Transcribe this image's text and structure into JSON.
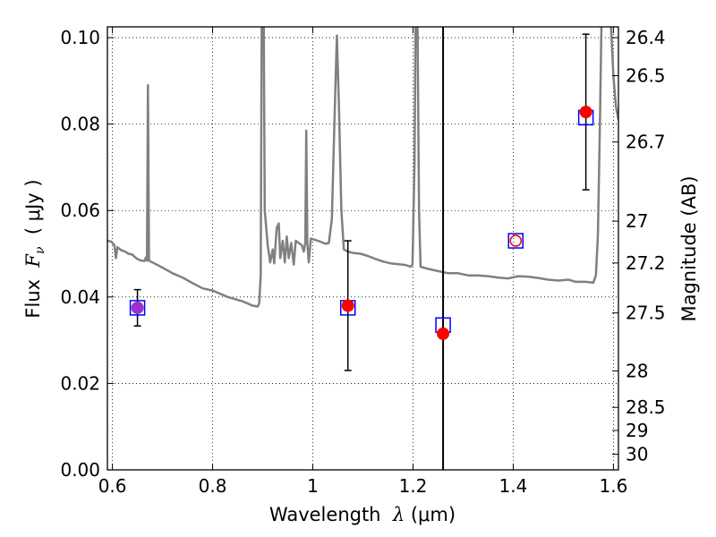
{
  "chart_data": {
    "type": "scatter",
    "title": "",
    "xlabel": {
      "prefix": "Wavelength  ",
      "symbol": "λ",
      "unit": " (μm)"
    },
    "ylabel": {
      "prefix": "Flux  ",
      "symbol": "F",
      "subscript": "ν",
      "unit": "  ( μJy )"
    },
    "y2label": "Magnitude (AB)",
    "xlim": [
      0.59,
      1.61
    ],
    "ylim": [
      0.0,
      0.1025
    ],
    "grid": true,
    "x_ticks": [
      {
        "value": 0.6,
        "label": "0.6"
      },
      {
        "value": 0.8,
        "label": "0.8"
      },
      {
        "value": 1.0,
        "label": "1"
      },
      {
        "value": 1.2,
        "label": "1.2"
      },
      {
        "value": 1.4,
        "label": "1.4"
      },
      {
        "value": 1.6,
        "label": "1.6"
      }
    ],
    "y_ticks": [
      {
        "value": 0.0,
        "label": "0.00"
      },
      {
        "value": 0.02,
        "label": "0.02"
      },
      {
        "value": 0.04,
        "label": "0.04"
      },
      {
        "value": 0.06,
        "label": "0.06"
      },
      {
        "value": 0.08,
        "label": "0.08"
      },
      {
        "value": 0.1,
        "label": "0.10"
      }
    ],
    "y2_ticks": [
      {
        "value": 26.4,
        "label": "26.4"
      },
      {
        "value": 26.5,
        "label": "26.5"
      },
      {
        "value": 26.7,
        "label": "26.7"
      },
      {
        "value": 27.0,
        "label": "27"
      },
      {
        "value": 27.2,
        "label": "27.2"
      },
      {
        "value": 27.5,
        "label": "27.5"
      },
      {
        "value": 28.0,
        "label": "28"
      },
      {
        "value": 28.5,
        "label": "28.5"
      },
      {
        "value": 29.0,
        "label": "29"
      },
      {
        "value": 30.0,
        "label": "30"
      }
    ],
    "vertical_line_x": 1.26,
    "model_spectrum": {
      "color": "#808080",
      "points": [
        [
          0.59,
          0.053
        ],
        [
          0.598,
          0.0528
        ],
        [
          0.604,
          0.052
        ],
        [
          0.607,
          0.049
        ],
        [
          0.61,
          0.0515
        ],
        [
          0.618,
          0.0508
        ],
        [
          0.625,
          0.0505
        ],
        [
          0.632,
          0.05
        ],
        [
          0.64,
          0.0498
        ],
        [
          0.645,
          0.0492
        ],
        [
          0.65,
          0.0488
        ],
        [
          0.655,
          0.0485
        ],
        [
          0.66,
          0.0484
        ],
        [
          0.664,
          0.0483
        ],
        [
          0.667,
          0.0492
        ],
        [
          0.669,
          0.0484
        ],
        [
          0.671,
          0.089
        ],
        [
          0.673,
          0.0484
        ],
        [
          0.68,
          0.048
        ],
        [
          0.7,
          0.0468
        ],
        [
          0.72,
          0.0455
        ],
        [
          0.74,
          0.0445
        ],
        [
          0.76,
          0.0432
        ],
        [
          0.78,
          0.042
        ],
        [
          0.8,
          0.0415
        ],
        [
          0.83,
          0.04
        ],
        [
          0.86,
          0.039
        ],
        [
          0.88,
          0.038
        ],
        [
          0.89,
          0.0378
        ],
        [
          0.893,
          0.0385
        ],
        [
          0.896,
          0.045
        ],
        [
          0.898,
          0.103
        ],
        [
          0.902,
          0.103
        ],
        [
          0.904,
          0.06
        ],
        [
          0.91,
          0.052
        ],
        [
          0.915,
          0.048
        ],
        [
          0.92,
          0.051
        ],
        [
          0.923,
          0.0478
        ],
        [
          0.928,
          0.056
        ],
        [
          0.932,
          0.057
        ],
        [
          0.935,
          0.049
        ],
        [
          0.94,
          0.053
        ],
        [
          0.944,
          0.048
        ],
        [
          0.948,
          0.054
        ],
        [
          0.952,
          0.049
        ],
        [
          0.957,
          0.0525
        ],
        [
          0.962,
          0.0475
        ],
        [
          0.966,
          0.053
        ],
        [
          0.972,
          0.0525
        ],
        [
          0.978,
          0.052
        ],
        [
          0.982,
          0.0505
        ],
        [
          0.985,
          0.0525
        ],
        [
          0.987,
          0.0785
        ],
        [
          0.989,
          0.0525
        ],
        [
          0.992,
          0.048
        ],
        [
          0.996,
          0.0535
        ],
        [
          1.005,
          0.0532
        ],
        [
          1.015,
          0.0528
        ],
        [
          1.025,
          0.0523
        ],
        [
          1.032,
          0.0525
        ],
        [
          1.038,
          0.058
        ],
        [
          1.043,
          0.08
        ],
        [
          1.048,
          0.1005
        ],
        [
          1.052,
          0.085
        ],
        [
          1.057,
          0.06
        ],
        [
          1.062,
          0.051
        ],
        [
          1.07,
          0.0505
        ],
        [
          1.08,
          0.0502
        ],
        [
          1.095,
          0.05
        ],
        [
          1.11,
          0.0495
        ],
        [
          1.125,
          0.0488
        ],
        [
          1.14,
          0.0482
        ],
        [
          1.155,
          0.0478
        ],
        [
          1.17,
          0.0476
        ],
        [
          1.185,
          0.0474
        ],
        [
          1.195,
          0.047
        ],
        [
          1.199,
          0.0475
        ],
        [
          1.203,
          0.072
        ],
        [
          1.205,
          0.103
        ],
        [
          1.209,
          0.103
        ],
        [
          1.212,
          0.06
        ],
        [
          1.215,
          0.047
        ],
        [
          1.23,
          0.0465
        ],
        [
          1.25,
          0.046
        ],
        [
          1.27,
          0.0455
        ],
        [
          1.29,
          0.0455
        ],
        [
          1.31,
          0.045
        ],
        [
          1.33,
          0.045
        ],
        [
          1.35,
          0.0448
        ],
        [
          1.37,
          0.0445
        ],
        [
          1.39,
          0.0443
        ],
        [
          1.41,
          0.0448
        ],
        [
          1.43,
          0.0447
        ],
        [
          1.45,
          0.0444
        ],
        [
          1.47,
          0.044
        ],
        [
          1.49,
          0.0438
        ],
        [
          1.51,
          0.044
        ],
        [
          1.525,
          0.0435
        ],
        [
          1.545,
          0.0435
        ],
        [
          1.56,
          0.0433
        ],
        [
          1.565,
          0.045
        ],
        [
          1.569,
          0.054
        ],
        [
          1.573,
          0.08
        ],
        [
          1.576,
          0.103
        ],
        [
          1.595,
          0.103
        ],
        [
          1.6,
          0.091
        ],
        [
          1.605,
          0.084
        ],
        [
          1.61,
          0.081
        ]
      ]
    },
    "series": [
      {
        "marker": "square",
        "color": "#0000ff",
        "points": [
          {
            "x": 0.65,
            "y": 0.0375
          },
          {
            "x": 1.07,
            "y": 0.0375
          },
          {
            "x": 1.26,
            "y": 0.0335
          },
          {
            "x": 1.405,
            "y": 0.053
          },
          {
            "x": 1.545,
            "y": 0.0815
          }
        ]
      },
      {
        "marker": "circle",
        "color": "#ff0000",
        "points": [
          {
            "x": 0.65,
            "y": 0.0375,
            "yerr": 0.0042,
            "fill": "#9933cc"
          },
          {
            "x": 1.07,
            "y": 0.038,
            "yerr": 0.015
          },
          {
            "x": 1.26,
            "y": 0.0315
          },
          {
            "x": 1.405,
            "y": 0.053,
            "hollow": true
          },
          {
            "x": 1.545,
            "y": 0.0828,
            "yerr": 0.018
          }
        ]
      }
    ]
  }
}
